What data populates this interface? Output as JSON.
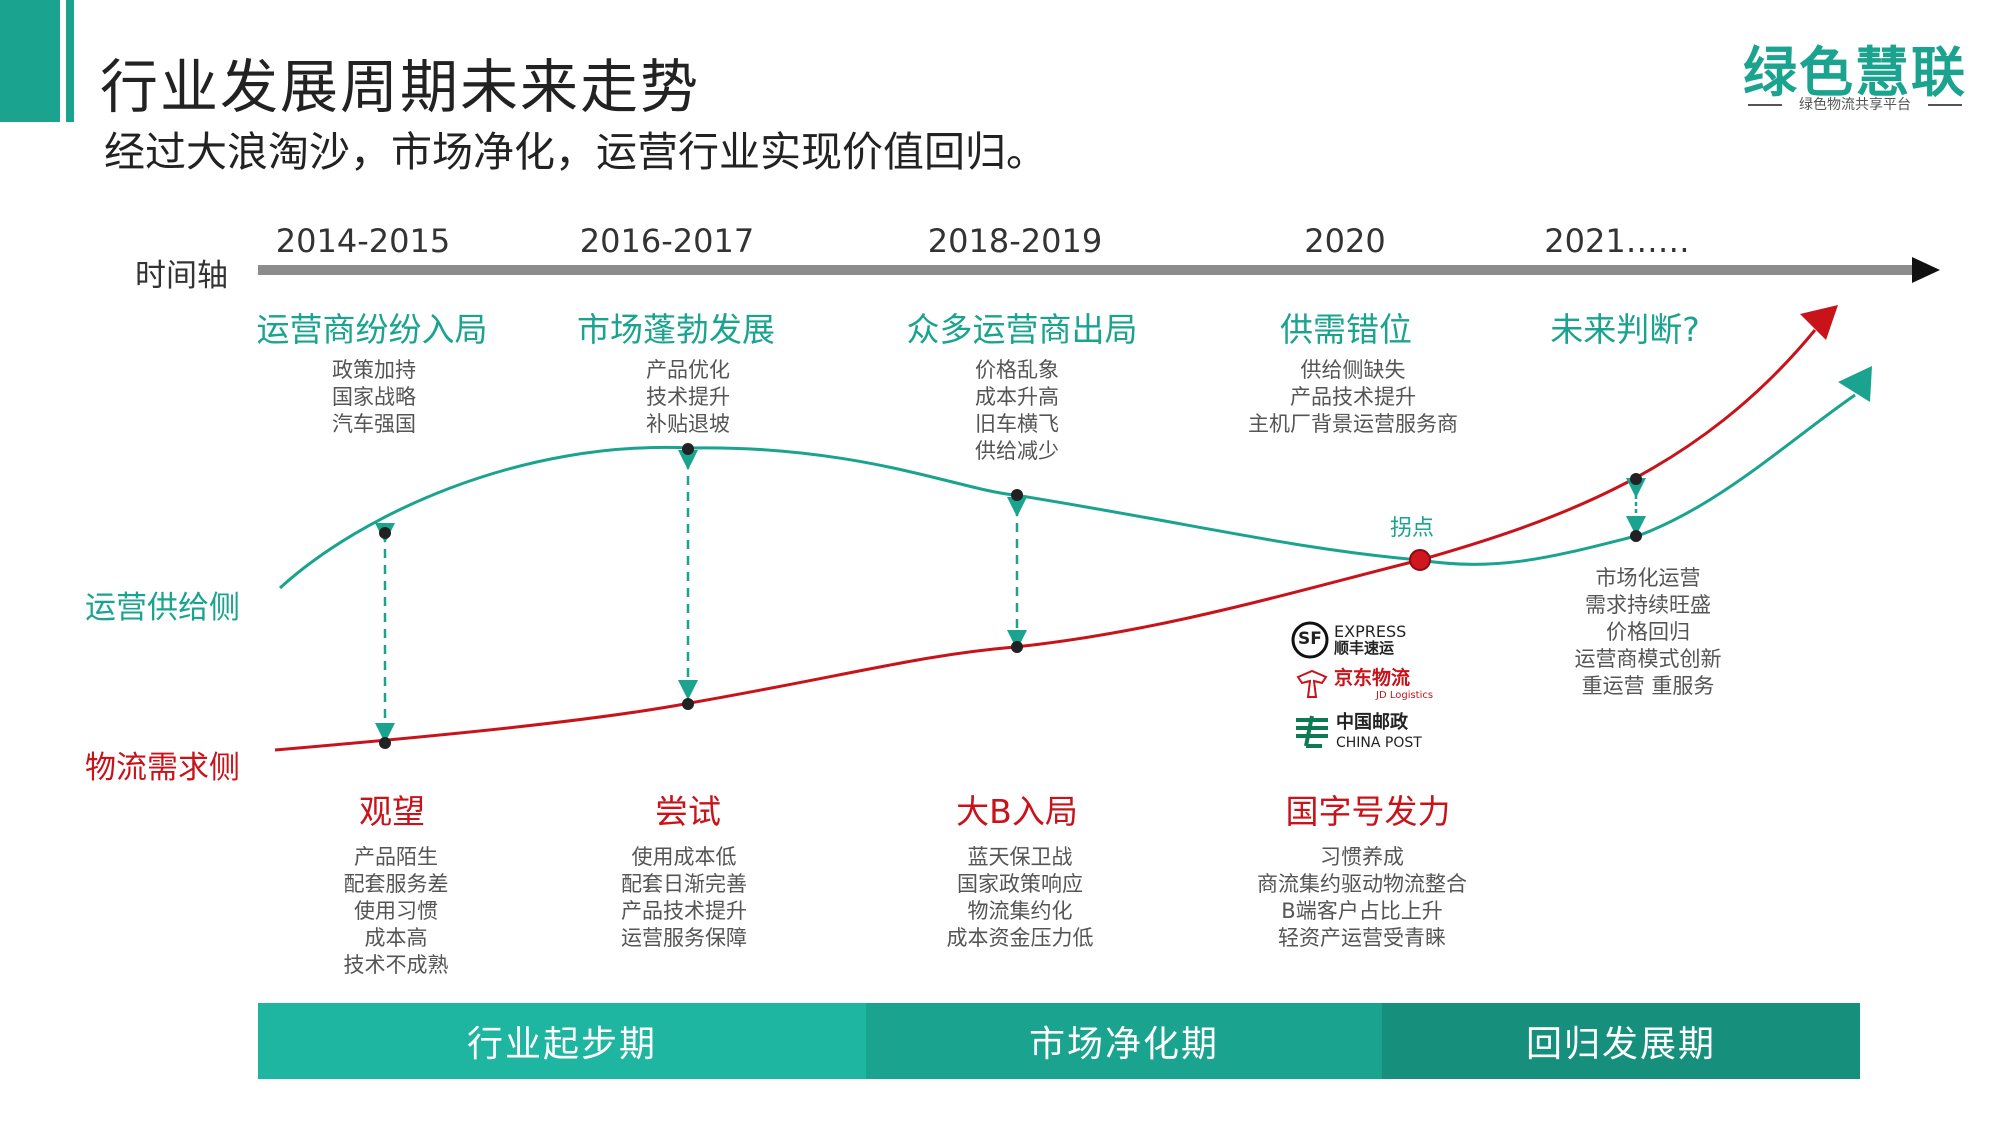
{
  "header": {
    "title": "行业发展周期未来走势",
    "subtitle": "经过大浪淘沙，市场净化，运营行业实现价值回归。"
  },
  "logo": {
    "main": "绿色慧联",
    "sub": "绿色物流共享平台"
  },
  "timeline": {
    "axis_label": "时间轴",
    "years": [
      "2014-2015",
      "2016-2017",
      "2018-2019",
      "2020",
      "2021……"
    ]
  },
  "series": {
    "supply": {
      "name": "运营供给侧",
      "color": "#1aa38e"
    },
    "demand": {
      "name": "物流需求侧",
      "color": "#c8131a"
    }
  },
  "inflection_label": "拐点",
  "supply_phases": [
    {
      "title": "运营商纷纷入局",
      "points": [
        "政策加持",
        "国家战略",
        "汽车强国"
      ]
    },
    {
      "title": "市场蓬勃发展",
      "points": [
        "产品优化",
        "技术提升",
        "补贴退坡"
      ]
    },
    {
      "title": "众多运营商出局",
      "points": [
        "价格乱象",
        "成本升高",
        "旧车横飞",
        "供给减少"
      ]
    },
    {
      "title": "供需错位",
      "points": [
        "供给侧缺失",
        "产品技术提升",
        "主机厂背景运营服务商"
      ]
    },
    {
      "title": "未来判断?",
      "points": []
    }
  ],
  "future_points": [
    "市场化运营",
    "需求持续旺盛",
    "价格回归",
    "运营商模式创新",
    "重运营  重服务"
  ],
  "demand_phases": [
    {
      "title": "观望",
      "points": [
        "产品陌生",
        "配套服务差",
        "使用习惯",
        "成本高",
        "技术不成熟"
      ]
    },
    {
      "title": "尝试",
      "points": [
        "使用成本低",
        "配套日渐完善",
        "产品技术提升",
        "运营服务保障"
      ]
    },
    {
      "title": "大B入局",
      "points": [
        "蓝天保卫战",
        "国家政策响应",
        "物流集约化",
        "成本资金压力低"
      ]
    },
    {
      "title": "国字号发力",
      "points": [
        "习惯养成",
        "商流集约驱动物流整合",
        "B端客户占比上升",
        "轻资产运营受青睐"
      ]
    }
  ],
  "brands": {
    "sf": {
      "logo": "SF",
      "en": "EXPRESS",
      "cn": "顺丰速运"
    },
    "jd": {
      "cn": "京东物流",
      "en": "JD Logistics"
    },
    "post": {
      "cn": "中国邮政",
      "en": "CHINA POST"
    }
  },
  "periods": [
    {
      "name": "行业起步期",
      "color": "#1eb6a0"
    },
    {
      "name": "市场净化期",
      "color": "#1aa38e"
    },
    {
      "name": "回归发展期",
      "color": "#16907d"
    }
  ]
}
